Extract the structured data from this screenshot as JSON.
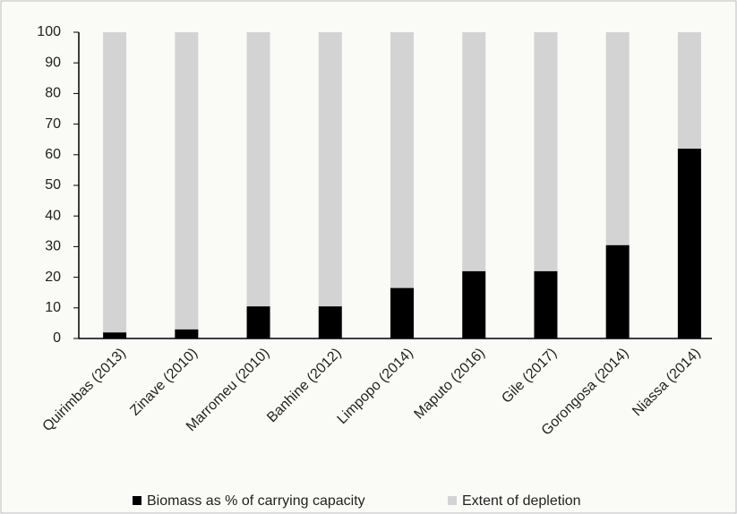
{
  "chart_data": {
    "type": "stacked_bar",
    "categories": [
      "Quirimbas (2013)",
      "Zinave (2010)",
      "Marromeu (2010)",
      "Banhine (2012)",
      "Limpopo (2014)",
      "Maputo (2016)",
      "Gile (2017)",
      "Gorongosa (2014)",
      "Niassa (2014)"
    ],
    "series": [
      {
        "name": "Biomass as % of carrying capacity",
        "color": "#000000",
        "values": [
          2,
          3,
          10.5,
          10.5,
          16.5,
          22,
          22,
          30.5,
          62
        ]
      },
      {
        "name": "Extent of depletion",
        "color": "#d3d3d3",
        "values": [
          98,
          97,
          89.5,
          89.5,
          83.5,
          78,
          78,
          69.5,
          38
        ]
      }
    ],
    "ylim": [
      0,
      100
    ],
    "yticks": [
      0,
      10,
      20,
      30,
      40,
      50,
      60,
      70,
      80,
      90,
      100
    ],
    "grid": false,
    "legend": "bottom"
  }
}
